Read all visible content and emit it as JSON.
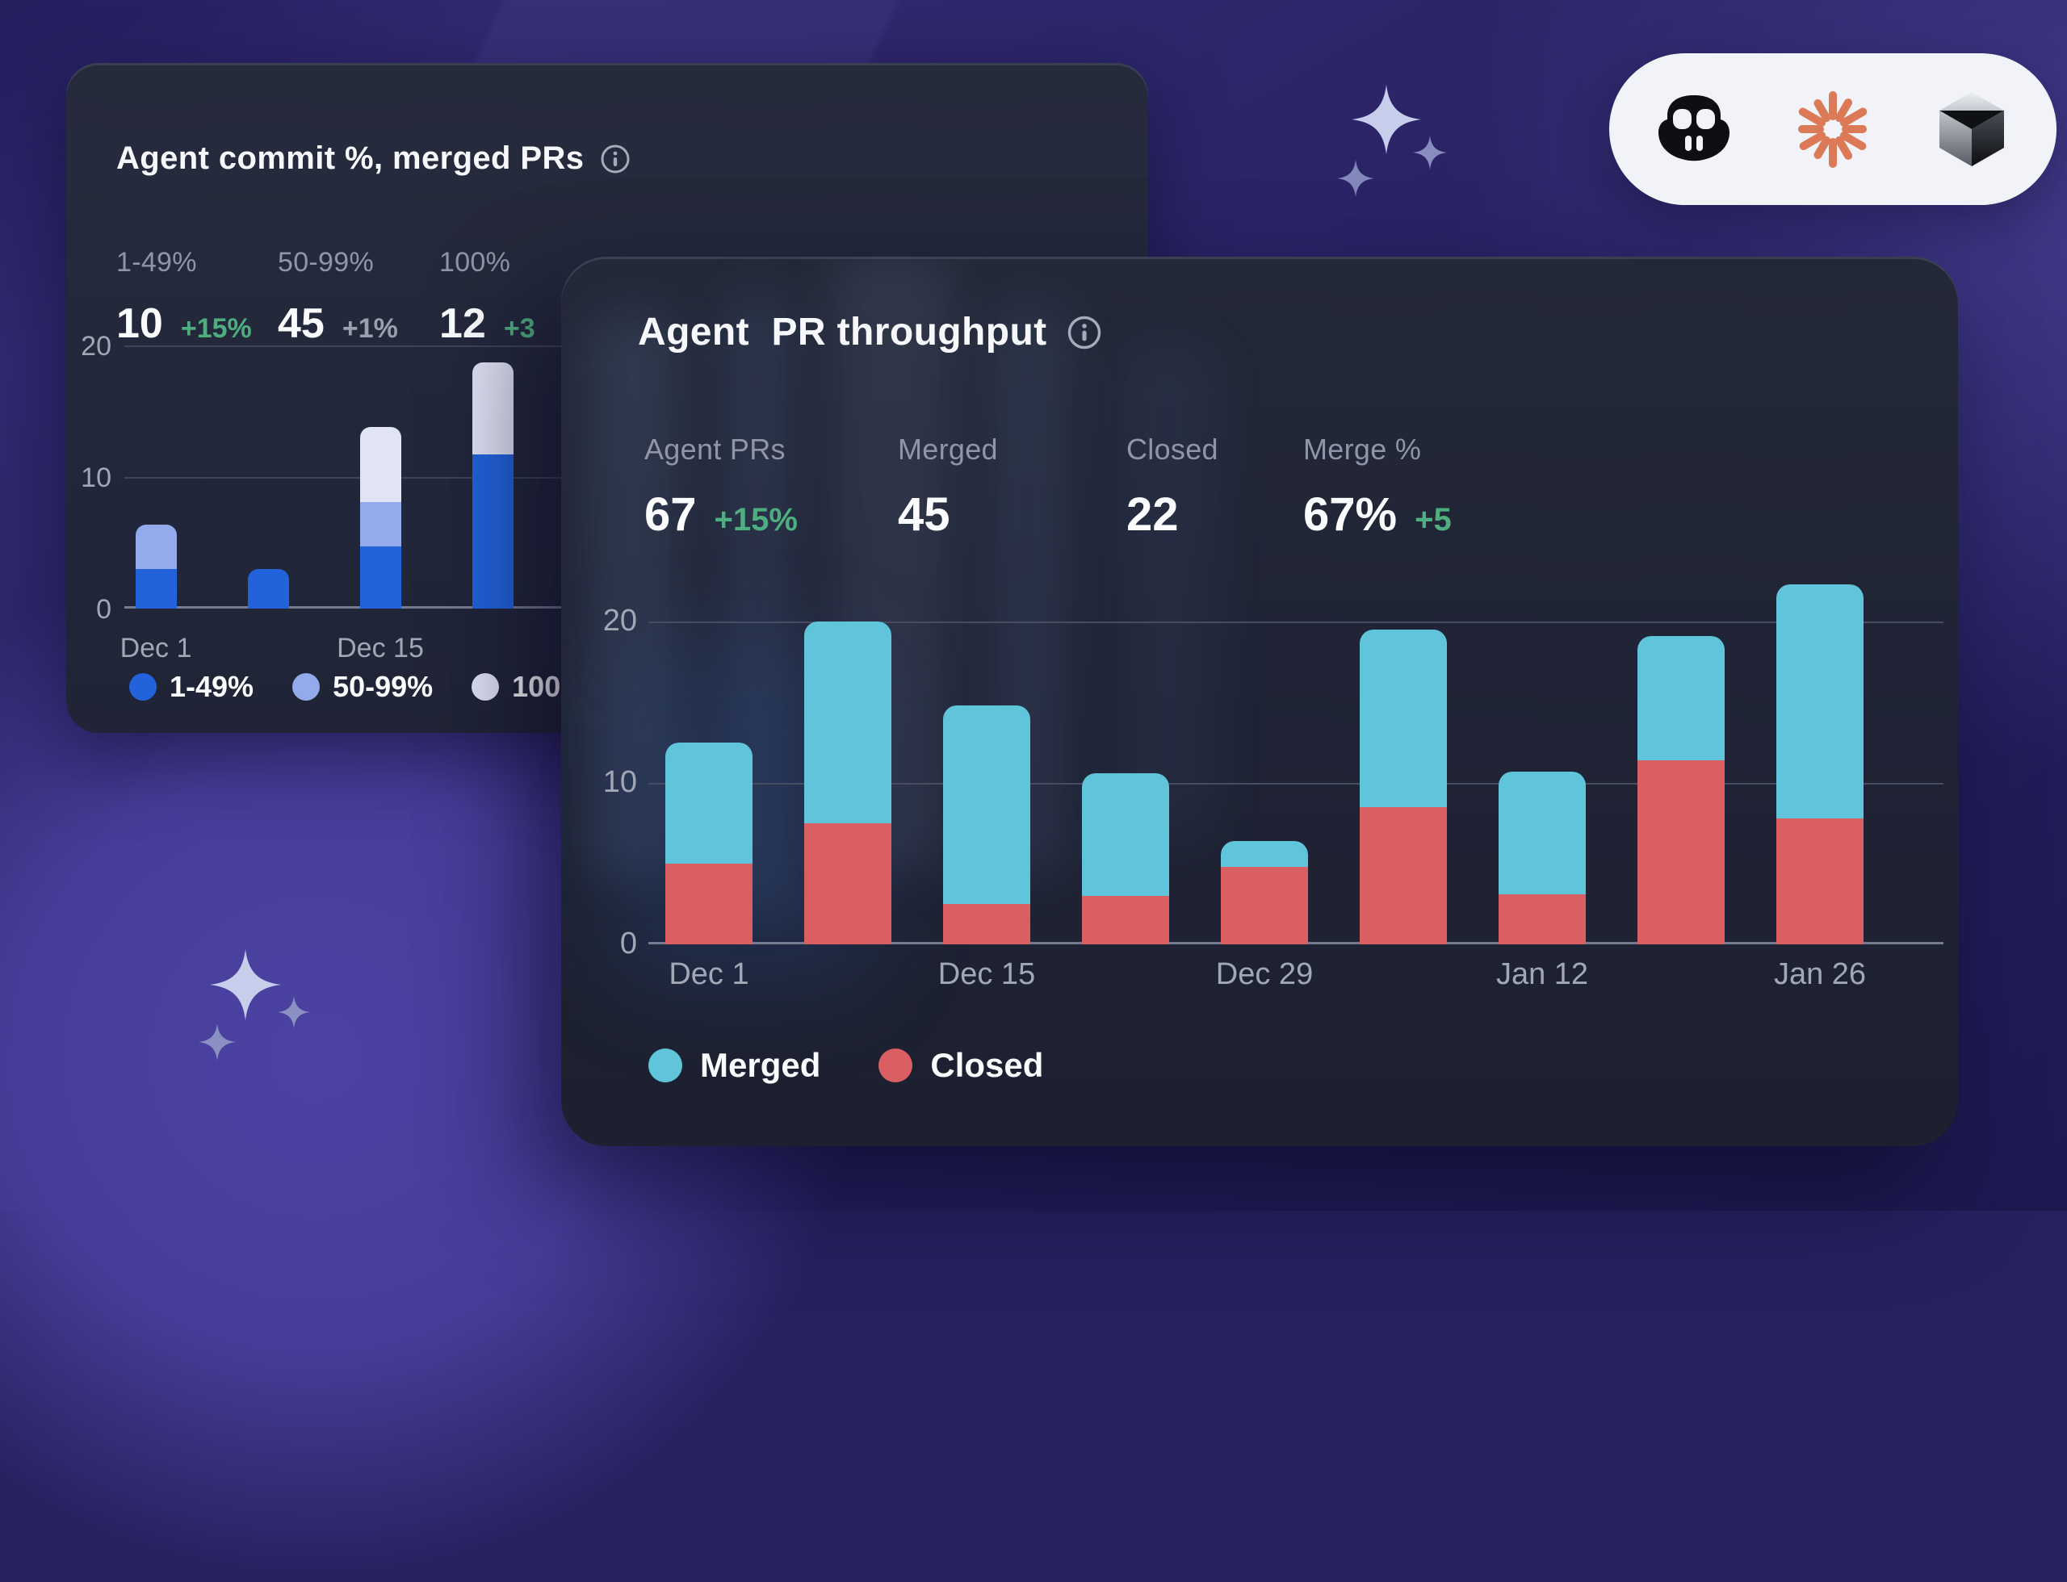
{
  "colors": {
    "accent_green": "#4FAE80",
    "muted_gray": "#9BA0AE",
    "bar_blue": "#2263DC",
    "bar_light_blue": "#93ABEC",
    "bar_white": "#E0E4F4",
    "bar_teal": "#60C5DA",
    "bar_red": "#DA5F63"
  },
  "logo_pill": {
    "icons": [
      "copilot",
      "claude",
      "cursor"
    ]
  },
  "back_card": {
    "title": "Agent commit %, merged PRs",
    "stats": [
      {
        "label": "1-49%",
        "value": "10",
        "trend": "+15%",
        "trend_color": "#4FAE80"
      },
      {
        "label": "50-99%",
        "value": "45",
        "trend": "+1%",
        "trend_color": "#9BA0AE"
      },
      {
        "label": "100%",
        "value": "12",
        "trend": "+3",
        "trend_color": "#4FAE80"
      }
    ],
    "chart_data": {
      "type": "bar",
      "stacked": true,
      "ylim": [
        0,
        20
      ],
      "yticks": [
        "0",
        "10",
        "20"
      ],
      "grid": "horizontal",
      "tick_labels": [
        "Dec 1",
        "Dec 15"
      ],
      "series": [
        {
          "name": "1-49%",
          "color": "#2263DC",
          "values": [
            3.0,
            3.0,
            4.7,
            11.7
          ]
        },
        {
          "name": "50-99%",
          "color": "#93ABEC",
          "values": [
            3.4,
            0,
            3.4,
            0
          ]
        },
        {
          "name": "100%",
          "color": "#E0E4F4",
          "values": [
            0,
            0,
            5.7,
            7.0
          ]
        }
      ]
    }
  },
  "front_card": {
    "title": "Agent  PR throughput",
    "stats": [
      {
        "label": "Agent PRs",
        "value": "67",
        "trend": "+15%",
        "trend_color": "#4FAE80"
      },
      {
        "label": "Merged",
        "value": "45",
        "trend": "",
        "trend_color": "#4FAE80"
      },
      {
        "label": "Closed",
        "value": "22",
        "trend": "",
        "trend_color": "#4FAE80"
      },
      {
        "label": "Merge %",
        "value": "67%",
        "trend": "+5",
        "trend_color": "#4FAE80"
      }
    ],
    "chart_data": {
      "type": "bar",
      "stacked": true,
      "ylim": [
        0,
        22.5
      ],
      "yticks": [
        "0",
        "10",
        "20"
      ],
      "grid": "horizontal",
      "tick_labels": [
        "Dec 1",
        "Dec 15",
        "Dec 29",
        "Jan 12",
        "Jan 26"
      ],
      "series": [
        {
          "name": "Closed",
          "color": "#DA5F63",
          "values": [
            5.0,
            7.5,
            2.5,
            3.0,
            4.8,
            8.5,
            3.1,
            11.4,
            7.8
          ]
        },
        {
          "name": "Merged",
          "color": "#60C5DA",
          "values": [
            7.5,
            12.5,
            12.3,
            7.6,
            1.6,
            11.0,
            7.6,
            7.7,
            14.5
          ]
        }
      ]
    },
    "legend": [
      {
        "label": "Merged",
        "color": "#60C5DA"
      },
      {
        "label": "Closed",
        "color": "#DA5F63"
      }
    ]
  }
}
